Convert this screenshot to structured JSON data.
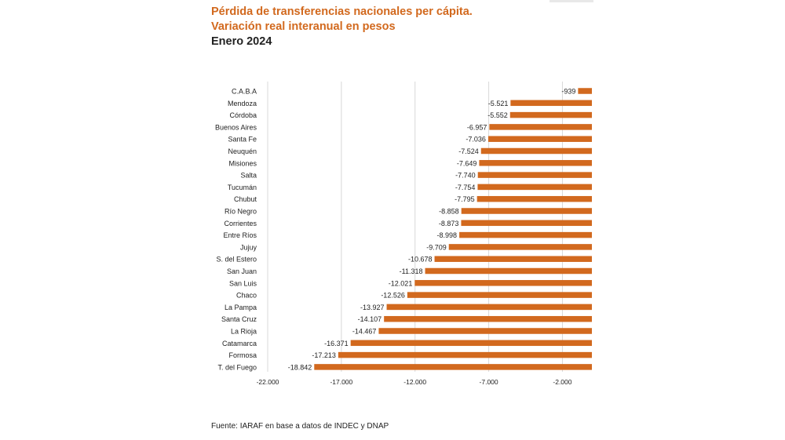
{
  "title": "Pérdida de transferencias nacionales per cápita.",
  "subtitle": "Variación real interanual en pesos",
  "period": "Enero 2024",
  "source": "Fuente: IARAF en base a datos de INDEC y DNAP",
  "colors": {
    "bar": "#d2691e",
    "title": "#d2691e",
    "text": "#222222",
    "grid": "#d8d8d8"
  },
  "chart_data": {
    "type": "bar",
    "orientation": "horizontal",
    "categories": [
      "C.A.B.A",
      "Mendoza",
      "Córdoba",
      "Buenos Aires",
      "Santa Fe",
      "Neuquén",
      "Misiones",
      "Salta",
      "Tucumán",
      "Chubut",
      "Río Negro",
      "Corrientes",
      "Entre Ríos",
      "Jujuy",
      "S. del Estero",
      "San Juan",
      "San Luis",
      "Chaco",
      "La Pampa",
      "Santa Cruz",
      "La Rioja",
      "Catamarca",
      "Formosa",
      "T. del Fuego"
    ],
    "values": [
      -939,
      -5521,
      -5552,
      -6957,
      -7036,
      -7524,
      -7649,
      -7740,
      -7754,
      -7795,
      -8858,
      -8873,
      -8998,
      -9709,
      -10678,
      -11318,
      -12021,
      -12526,
      -13927,
      -14107,
      -14467,
      -16371,
      -17213,
      -18842
    ],
    "value_labels": [
      "-939",
      "-5.521",
      "-5.552",
      "-6.957",
      "-7.036",
      "-7.524",
      "-7.649",
      "-7.740",
      "-7.754",
      "-7.795",
      "-8.858",
      "-8.873",
      "-8.998",
      "-9.709",
      "-10.678",
      "-11.318",
      "-12.021",
      "-12.526",
      "-13.927",
      "-14.107",
      "-14.467",
      "-16.371",
      "-17.213",
      "-18.842"
    ],
    "x_ticks": [
      -22000,
      -17000,
      -12000,
      -7000,
      -2000
    ],
    "x_tick_labels": [
      "-22.000",
      "-17.000",
      "-12.000",
      "-7.000",
      "-2.000"
    ],
    "xlim": [
      -22000,
      0
    ],
    "grid": true,
    "title": "Pérdida de transferencias nacionales per cápita.",
    "xlabel": "",
    "ylabel": ""
  }
}
